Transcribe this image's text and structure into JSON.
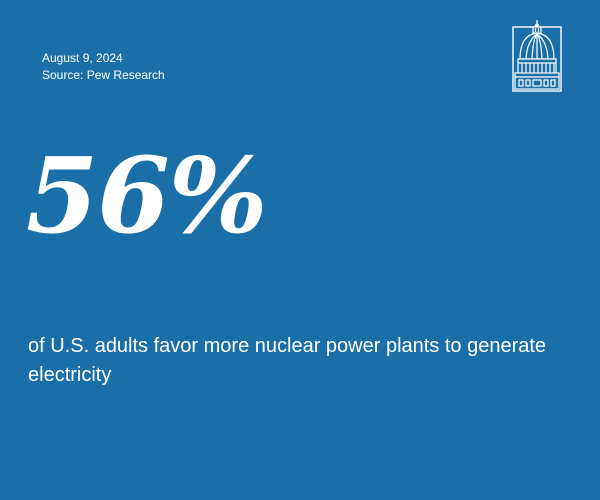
{
  "header": {
    "date": "August 9, 2024",
    "source": "Source: Pew Research"
  },
  "logo": {
    "icon": "capitol-dome-icon"
  },
  "stat": {
    "value": "56%",
    "description": "of U.S. adults favor more nuclear power plants to generate electricity"
  },
  "colors": {
    "background": "#1b6fa8",
    "text": "#ffffff"
  }
}
